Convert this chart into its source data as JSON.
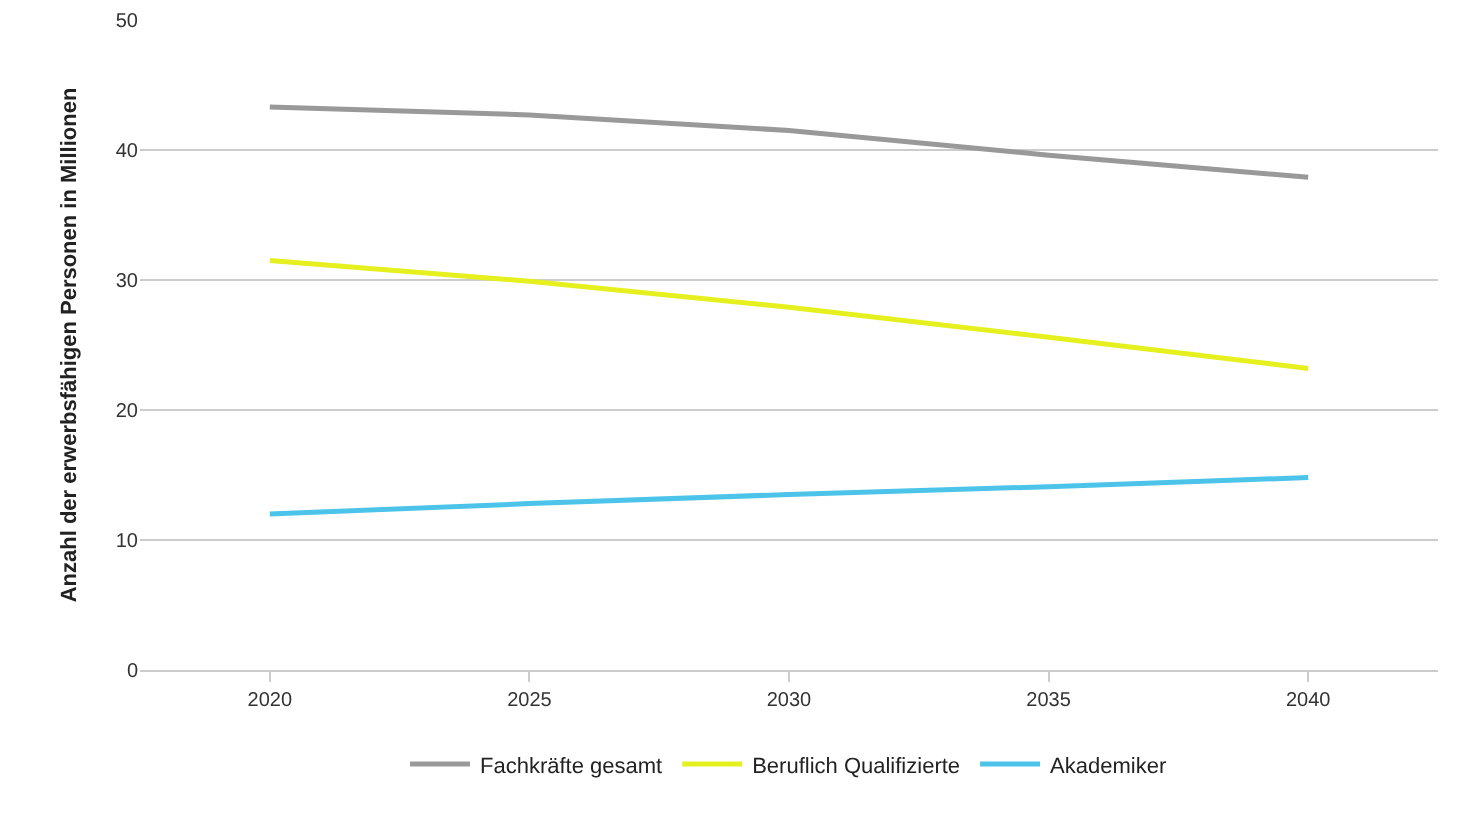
{
  "chart_data": {
    "type": "line",
    "ylabel": "Anzahl der erwerbsfähigen Personen in Millionen",
    "categories": [
      "2020",
      "2025",
      "2030",
      "2035",
      "2040"
    ],
    "series": [
      {
        "name": "Fachkräfte gesamt",
        "color": "#999999",
        "values": [
          43.3,
          42.7,
          41.5,
          39.6,
          37.9
        ]
      },
      {
        "name": "Beruflich Qualifizierte",
        "color": "#e6f01e",
        "values": [
          31.5,
          29.9,
          27.9,
          25.6,
          23.2
        ]
      },
      {
        "name": "Akademiker",
        "color": "#4cc4ea",
        "values": [
          12.0,
          12.8,
          13.5,
          14.1,
          14.8
        ]
      }
    ],
    "ylim": [
      0,
      50
    ],
    "yticks": [
      0,
      10,
      20,
      30,
      40,
      50
    ],
    "grid": "y",
    "legend": "bottom",
    "marker": "none",
    "line_style": "solid"
  }
}
